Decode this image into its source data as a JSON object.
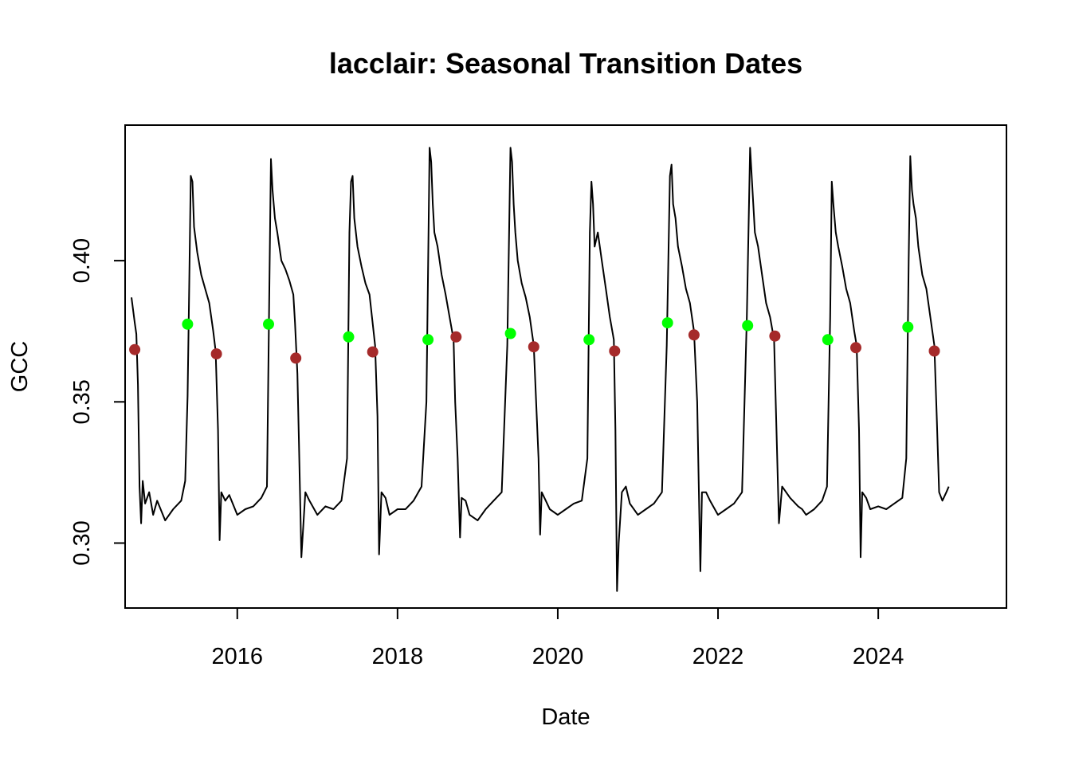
{
  "chart_data": {
    "type": "line",
    "title": "lacclair: Seasonal Transition Dates",
    "xlabel": "Date",
    "ylabel": "GCC",
    "xlim": [
      2014.6,
      2025.6
    ],
    "ylim": [
      0.277,
      0.448
    ],
    "x_ticks": [
      2016,
      2018,
      2020,
      2022,
      2024
    ],
    "x_tick_labels": [
      "2016",
      "2018",
      "2020",
      "2022",
      "2024"
    ],
    "y_ticks": [
      0.3,
      0.35,
      0.4
    ],
    "y_tick_labels": [
      "0.30",
      "0.35",
      "0.40"
    ],
    "grid": false,
    "series": [
      {
        "type": "line",
        "color": "#000000",
        "x": [
          2014.68,
          2014.72,
          2014.74,
          2014.76,
          2014.78,
          2014.8,
          2014.82,
          2014.85,
          2014.9,
          2014.95,
          2015.0,
          2015.1,
          2015.2,
          2015.3,
          2015.35,
          2015.38,
          2015.4,
          2015.42,
          2015.44,
          2015.46,
          2015.5,
          2015.55,
          2015.6,
          2015.65,
          2015.7,
          2015.73,
          2015.76,
          2015.78,
          2015.8,
          2015.85,
          2015.9,
          2016.0,
          2016.1,
          2016.2,
          2016.3,
          2016.37,
          2016.4,
          2016.42,
          2016.44,
          2016.47,
          2016.5,
          2016.55,
          2016.6,
          2016.65,
          2016.7,
          2016.72,
          2016.75,
          2016.77,
          2016.8,
          2016.85,
          2016.9,
          2017.0,
          2017.1,
          2017.2,
          2017.3,
          2017.37,
          2017.4,
          2017.42,
          2017.44,
          2017.46,
          2017.5,
          2017.55,
          2017.6,
          2017.65,
          2017.72,
          2017.75,
          2017.77,
          2017.8,
          2017.85,
          2017.9,
          2018.0,
          2018.1,
          2018.2,
          2018.3,
          2018.36,
          2018.4,
          2018.42,
          2018.44,
          2018.46,
          2018.5,
          2018.55,
          2018.6,
          2018.65,
          2018.7,
          2018.72,
          2018.75,
          2018.78,
          2018.8,
          2018.85,
          2018.9,
          2019.0,
          2019.1,
          2019.2,
          2019.3,
          2019.37,
          2019.41,
          2019.43,
          2019.45,
          2019.47,
          2019.5,
          2019.55,
          2019.6,
          2019.65,
          2019.7,
          2019.73,
          2019.76,
          2019.78,
          2019.8,
          2019.85,
          2019.9,
          2020.0,
          2020.1,
          2020.2,
          2020.3,
          2020.37,
          2020.4,
          2020.42,
          2020.44,
          2020.46,
          2020.5,
          2020.55,
          2020.6,
          2020.65,
          2020.7,
          2020.72,
          2020.74,
          2020.76,
          2020.8,
          2020.85,
          2020.9,
          2021.0,
          2021.1,
          2021.2,
          2021.3,
          2021.36,
          2021.4,
          2021.42,
          2021.44,
          2021.47,
          2021.5,
          2021.55,
          2021.6,
          2021.65,
          2021.7,
          2021.74,
          2021.78,
          2021.8,
          2021.85,
          2021.9,
          2022.0,
          2022.1,
          2022.2,
          2022.3,
          2022.36,
          2022.4,
          2022.42,
          2022.44,
          2022.46,
          2022.5,
          2022.55,
          2022.6,
          2022.65,
          2022.7,
          2022.73,
          2022.76,
          2022.8,
          2022.85,
          2022.9,
          2023.0,
          2023.05,
          2023.1,
          2023.2,
          2023.3,
          2023.36,
          2023.4,
          2023.42,
          2023.44,
          2023.47,
          2023.5,
          2023.55,
          2023.6,
          2023.65,
          2023.7,
          2023.73,
          2023.76,
          2023.78,
          2023.8,
          2023.85,
          2023.9,
          2024.0,
          2024.1,
          2024.2,
          2024.3,
          2024.35,
          2024.38,
          2024.4,
          2024.42,
          2024.44,
          2024.47,
          2024.5,
          2024.55,
          2024.6,
          2024.65,
          2024.7,
          2024.73,
          2024.76,
          2024.8,
          2024.85,
          2024.88
        ],
        "y": [
          0.387,
          0.378,
          0.374,
          0.356,
          0.32,
          0.307,
          0.322,
          0.314,
          0.318,
          0.31,
          0.315,
          0.308,
          0.312,
          0.315,
          0.322,
          0.352,
          0.39,
          0.43,
          0.428,
          0.412,
          0.403,
          0.395,
          0.39,
          0.385,
          0.375,
          0.368,
          0.34,
          0.301,
          0.318,
          0.315,
          0.317,
          0.31,
          0.312,
          0.313,
          0.316,
          0.32,
          0.39,
          0.436,
          0.425,
          0.415,
          0.41,
          0.4,
          0.397,
          0.393,
          0.388,
          0.378,
          0.36,
          0.335,
          0.295,
          0.318,
          0.315,
          0.31,
          0.313,
          0.312,
          0.315,
          0.33,
          0.41,
          0.428,
          0.43,
          0.415,
          0.405,
          0.398,
          0.392,
          0.388,
          0.37,
          0.345,
          0.296,
          0.318,
          0.316,
          0.31,
          0.312,
          0.312,
          0.315,
          0.32,
          0.35,
          0.44,
          0.435,
          0.42,
          0.41,
          0.405,
          0.395,
          0.388,
          0.38,
          0.372,
          0.35,
          0.33,
          0.302,
          0.316,
          0.315,
          0.31,
          0.308,
          0.312,
          0.315,
          0.318,
          0.37,
          0.44,
          0.435,
          0.42,
          0.41,
          0.4,
          0.392,
          0.387,
          0.38,
          0.37,
          0.35,
          0.33,
          0.303,
          0.318,
          0.315,
          0.312,
          0.31,
          0.312,
          0.314,
          0.315,
          0.33,
          0.41,
          0.428,
          0.42,
          0.405,
          0.41,
          0.4,
          0.39,
          0.38,
          0.372,
          0.34,
          0.283,
          0.3,
          0.318,
          0.32,
          0.314,
          0.31,
          0.312,
          0.314,
          0.318,
          0.37,
          0.43,
          0.434,
          0.42,
          0.415,
          0.405,
          0.398,
          0.39,
          0.385,
          0.375,
          0.35,
          0.29,
          0.318,
          0.318,
          0.315,
          0.31,
          0.312,
          0.314,
          0.318,
          0.38,
          0.44,
          0.43,
          0.42,
          0.41,
          0.405,
          0.395,
          0.385,
          0.38,
          0.372,
          0.34,
          0.307,
          0.32,
          0.318,
          0.316,
          0.313,
          0.312,
          0.31,
          0.312,
          0.315,
          0.32,
          0.38,
          0.428,
          0.42,
          0.41,
          0.405,
          0.398,
          0.39,
          0.385,
          0.375,
          0.37,
          0.34,
          0.295,
          0.318,
          0.316,
          0.312,
          0.313,
          0.312,
          0.314,
          0.316,
          0.33,
          0.4,
          0.437,
          0.425,
          0.42,
          0.415,
          0.405,
          0.395,
          0.39,
          0.38,
          0.37,
          0.345,
          0.318,
          0.315,
          0.318,
          0.32
        ]
      },
      {
        "type": "scatter",
        "color": "#00ff00",
        "x": [
          2015.38,
          2016.39,
          2017.39,
          2018.38,
          2019.41,
          2020.39,
          2021.37,
          2022.37,
          2023.37,
          2024.37
        ],
        "y": [
          0.3775,
          0.3775,
          0.373,
          0.372,
          0.3742,
          0.372,
          0.378,
          0.377,
          0.372,
          0.3765
        ]
      },
      {
        "type": "scatter",
        "color": "#a52a2a",
        "x": [
          2014.72,
          2015.74,
          2016.73,
          2017.69,
          2018.73,
          2019.7,
          2020.71,
          2021.7,
          2022.71,
          2023.72,
          2024.7
        ],
        "y": [
          0.3685,
          0.367,
          0.3655,
          0.3677,
          0.373,
          0.3695,
          0.368,
          0.3737,
          0.3733,
          0.3692,
          0.368
        ]
      }
    ]
  }
}
